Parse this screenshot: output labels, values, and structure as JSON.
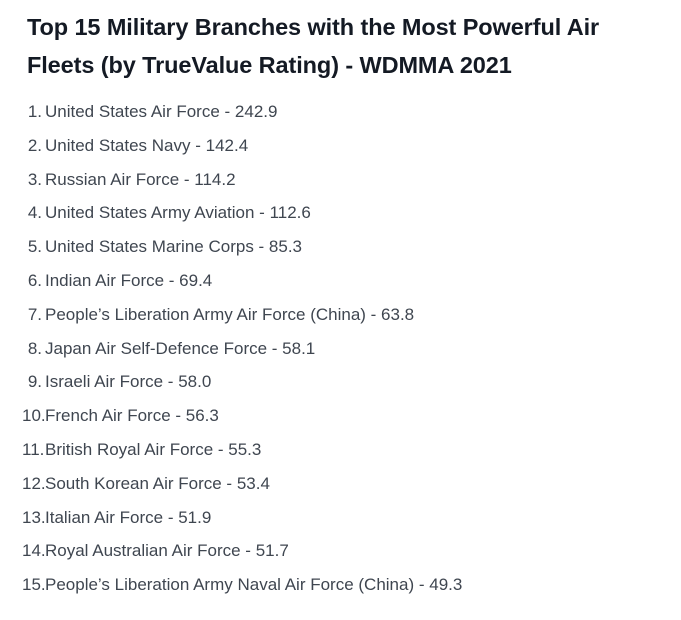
{
  "document": {
    "title": "Top 15 Military Branches with the Most Powerful Air Fleets (by TrueValue Rating) - WDMMA 2021",
    "items": [
      {
        "rank": "1.",
        "text": "United States Air Force - 242.9"
      },
      {
        "rank": "2.",
        "text": "United States Navy - 142.4"
      },
      {
        "rank": "3.",
        "text": "Russian Air Force - 114.2"
      },
      {
        "rank": "4.",
        "text": "United States Army Aviation - 112.6"
      },
      {
        "rank": "5.",
        "text": "United States Marine Corps - 85.3"
      },
      {
        "rank": "6.",
        "text": "Indian Air Force - 69.4"
      },
      {
        "rank": "7.",
        "text": "People’s Liberation Army Air Force (China) - 63.8"
      },
      {
        "rank": "8.",
        "text": "Japan Air Self-Defence Force - 58.1"
      },
      {
        "rank": "9.",
        "text": "Israeli Air Force - 58.0"
      },
      {
        "rank": "10.",
        "text": "French Air Force - 56.3"
      },
      {
        "rank": "11.",
        "text": "British Royal Air Force - 55.3"
      },
      {
        "rank": "12.",
        "text": "South Korean Air Force - 53.4"
      },
      {
        "rank": "13.",
        "text": "Italian Air Force - 51.9"
      },
      {
        "rank": "14.",
        "text": "Royal Australian Air Force - 51.7"
      },
      {
        "rank": "15.",
        "text": "People’s Liberation Army Naval Air Force (China) - 49.3"
      }
    ]
  },
  "colors": {
    "title": "#141a24",
    "body_text": "#3f4650",
    "background": "#ffffff"
  }
}
